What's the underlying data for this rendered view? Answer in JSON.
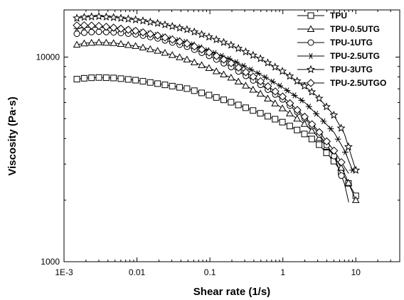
{
  "chart_data": {
    "type": "line",
    "title": "",
    "xlabel": "Shear rate (1/s)",
    "ylabel": "Viscosity (Pa·s)",
    "x_scale": "log",
    "y_scale": "log",
    "xlim": [
      0.001,
      40
    ],
    "ylim": [
      1000,
      17000
    ],
    "x_ticks": [
      {
        "value": 0.001,
        "label": "1E-3"
      },
      {
        "value": 0.01,
        "label": "0.01"
      },
      {
        "value": 0.1,
        "label": "0.1"
      },
      {
        "value": 1,
        "label": "1"
      },
      {
        "value": 10,
        "label": "10"
      }
    ],
    "y_ticks": [
      {
        "value": 1000,
        "label": "1000"
      },
      {
        "value": 10000,
        "label": "10000"
      }
    ],
    "grid": false,
    "legend_position": "top-right",
    "series": [
      {
        "name": "TPU",
        "marker": "square",
        "x": [
          0.0015,
          0.002,
          0.003,
          0.005,
          0.01,
          0.02,
          0.05,
          0.1,
          0.2,
          0.5,
          1,
          2,
          3,
          5,
          7,
          10
        ],
        "y": [
          7800,
          7900,
          7950,
          7900,
          7700,
          7400,
          7000,
          6500,
          6000,
          5300,
          4800,
          4200,
          3800,
          3100,
          2600,
          2100
        ]
      },
      {
        "name": "TPU-0.5UTG",
        "marker": "triangle",
        "x": [
          0.0015,
          0.002,
          0.003,
          0.005,
          0.01,
          0.02,
          0.05,
          0.1,
          0.2,
          0.5,
          1,
          2,
          3,
          5,
          7,
          10
        ],
        "y": [
          11500,
          11700,
          11800,
          11700,
          11300,
          10700,
          9700,
          8800,
          7900,
          6600,
          5600,
          4700,
          4100,
          3300,
          2700,
          2000
        ]
      },
      {
        "name": "TPU-1UTG",
        "marker": "circle",
        "x": [
          0.0015,
          0.002,
          0.003,
          0.005,
          0.01,
          0.02,
          0.05,
          0.1,
          0.2,
          0.5,
          1,
          2,
          3,
          5,
          7,
          8
        ],
        "y": [
          13000,
          13200,
          13300,
          13200,
          12900,
          12300,
          11200,
          10100,
          8900,
          7300,
          6200,
          5000,
          4300,
          3300,
          2400,
          1950
        ]
      },
      {
        "name": "TPU-2.5UTG",
        "marker": "asterisk",
        "x": [
          0.0015,
          0.002,
          0.003,
          0.005,
          0.01,
          0.02,
          0.05,
          0.1,
          0.2,
          0.5,
          1,
          2,
          3,
          5,
          7,
          9
        ],
        "y": [
          13800,
          14000,
          14000,
          13800,
          13400,
          12800,
          11800,
          10700,
          9700,
          8200,
          7100,
          6000,
          5200,
          4300,
          3500,
          2800
        ]
      },
      {
        "name": "TPU-3UTG",
        "marker": "star",
        "x": [
          0.0015,
          0.002,
          0.003,
          0.005,
          0.01,
          0.02,
          0.05,
          0.1,
          0.2,
          0.5,
          1,
          2,
          3,
          5,
          7,
          10
        ],
        "y": [
          15500,
          15700,
          15800,
          15600,
          15200,
          14600,
          13600,
          12500,
          11400,
          9800,
          8500,
          7200,
          6400,
          5200,
          4200,
          2800
        ]
      },
      {
        "name": "TPU-2.5UTGO",
        "marker": "diamond",
        "x": [
          0.0015,
          0.002,
          0.003,
          0.005,
          0.01,
          0.02,
          0.05,
          0.1,
          0.2,
          0.5,
          1,
          2,
          3,
          5,
          7,
          8
        ],
        "y": [
          14300,
          14300,
          14200,
          13900,
          13400,
          12700,
          11600,
          10500,
          9300,
          7600,
          6400,
          5100,
          4400,
          3500,
          2900,
          2700
        ]
      }
    ]
  }
}
